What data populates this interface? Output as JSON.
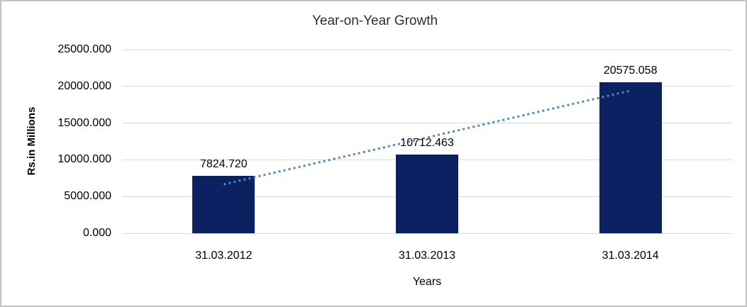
{
  "chart_data": {
    "type": "bar",
    "title": "Year-on-Year Growth",
    "xlabel": "Years",
    "ylabel": "Rs.in Millions",
    "categories": [
      "31.03.2012",
      "31.03.2013",
      "31.03.2014"
    ],
    "values": [
      7824.72,
      10712.463,
      20575.058
    ],
    "value_labels": [
      "7824.720",
      "10712.463",
      "20575.058"
    ],
    "ylim": [
      0,
      25000
    ],
    "ytick_step": 5000,
    "ytick_labels": [
      "0.000",
      "5000.000",
      "10000.000",
      "15000.000",
      "20000.000",
      "25000.000"
    ],
    "grid": "horizontal",
    "legend": "none",
    "bar_color": "#0b2161",
    "gridline_color": "#d9d9d9",
    "trendline": {
      "type": "linear",
      "style": "dotted",
      "color": "#4f86c6",
      "span": "first-to-last-category"
    },
    "frame_border_color": "#c2c2c2",
    "background_color": "#ffffff"
  }
}
